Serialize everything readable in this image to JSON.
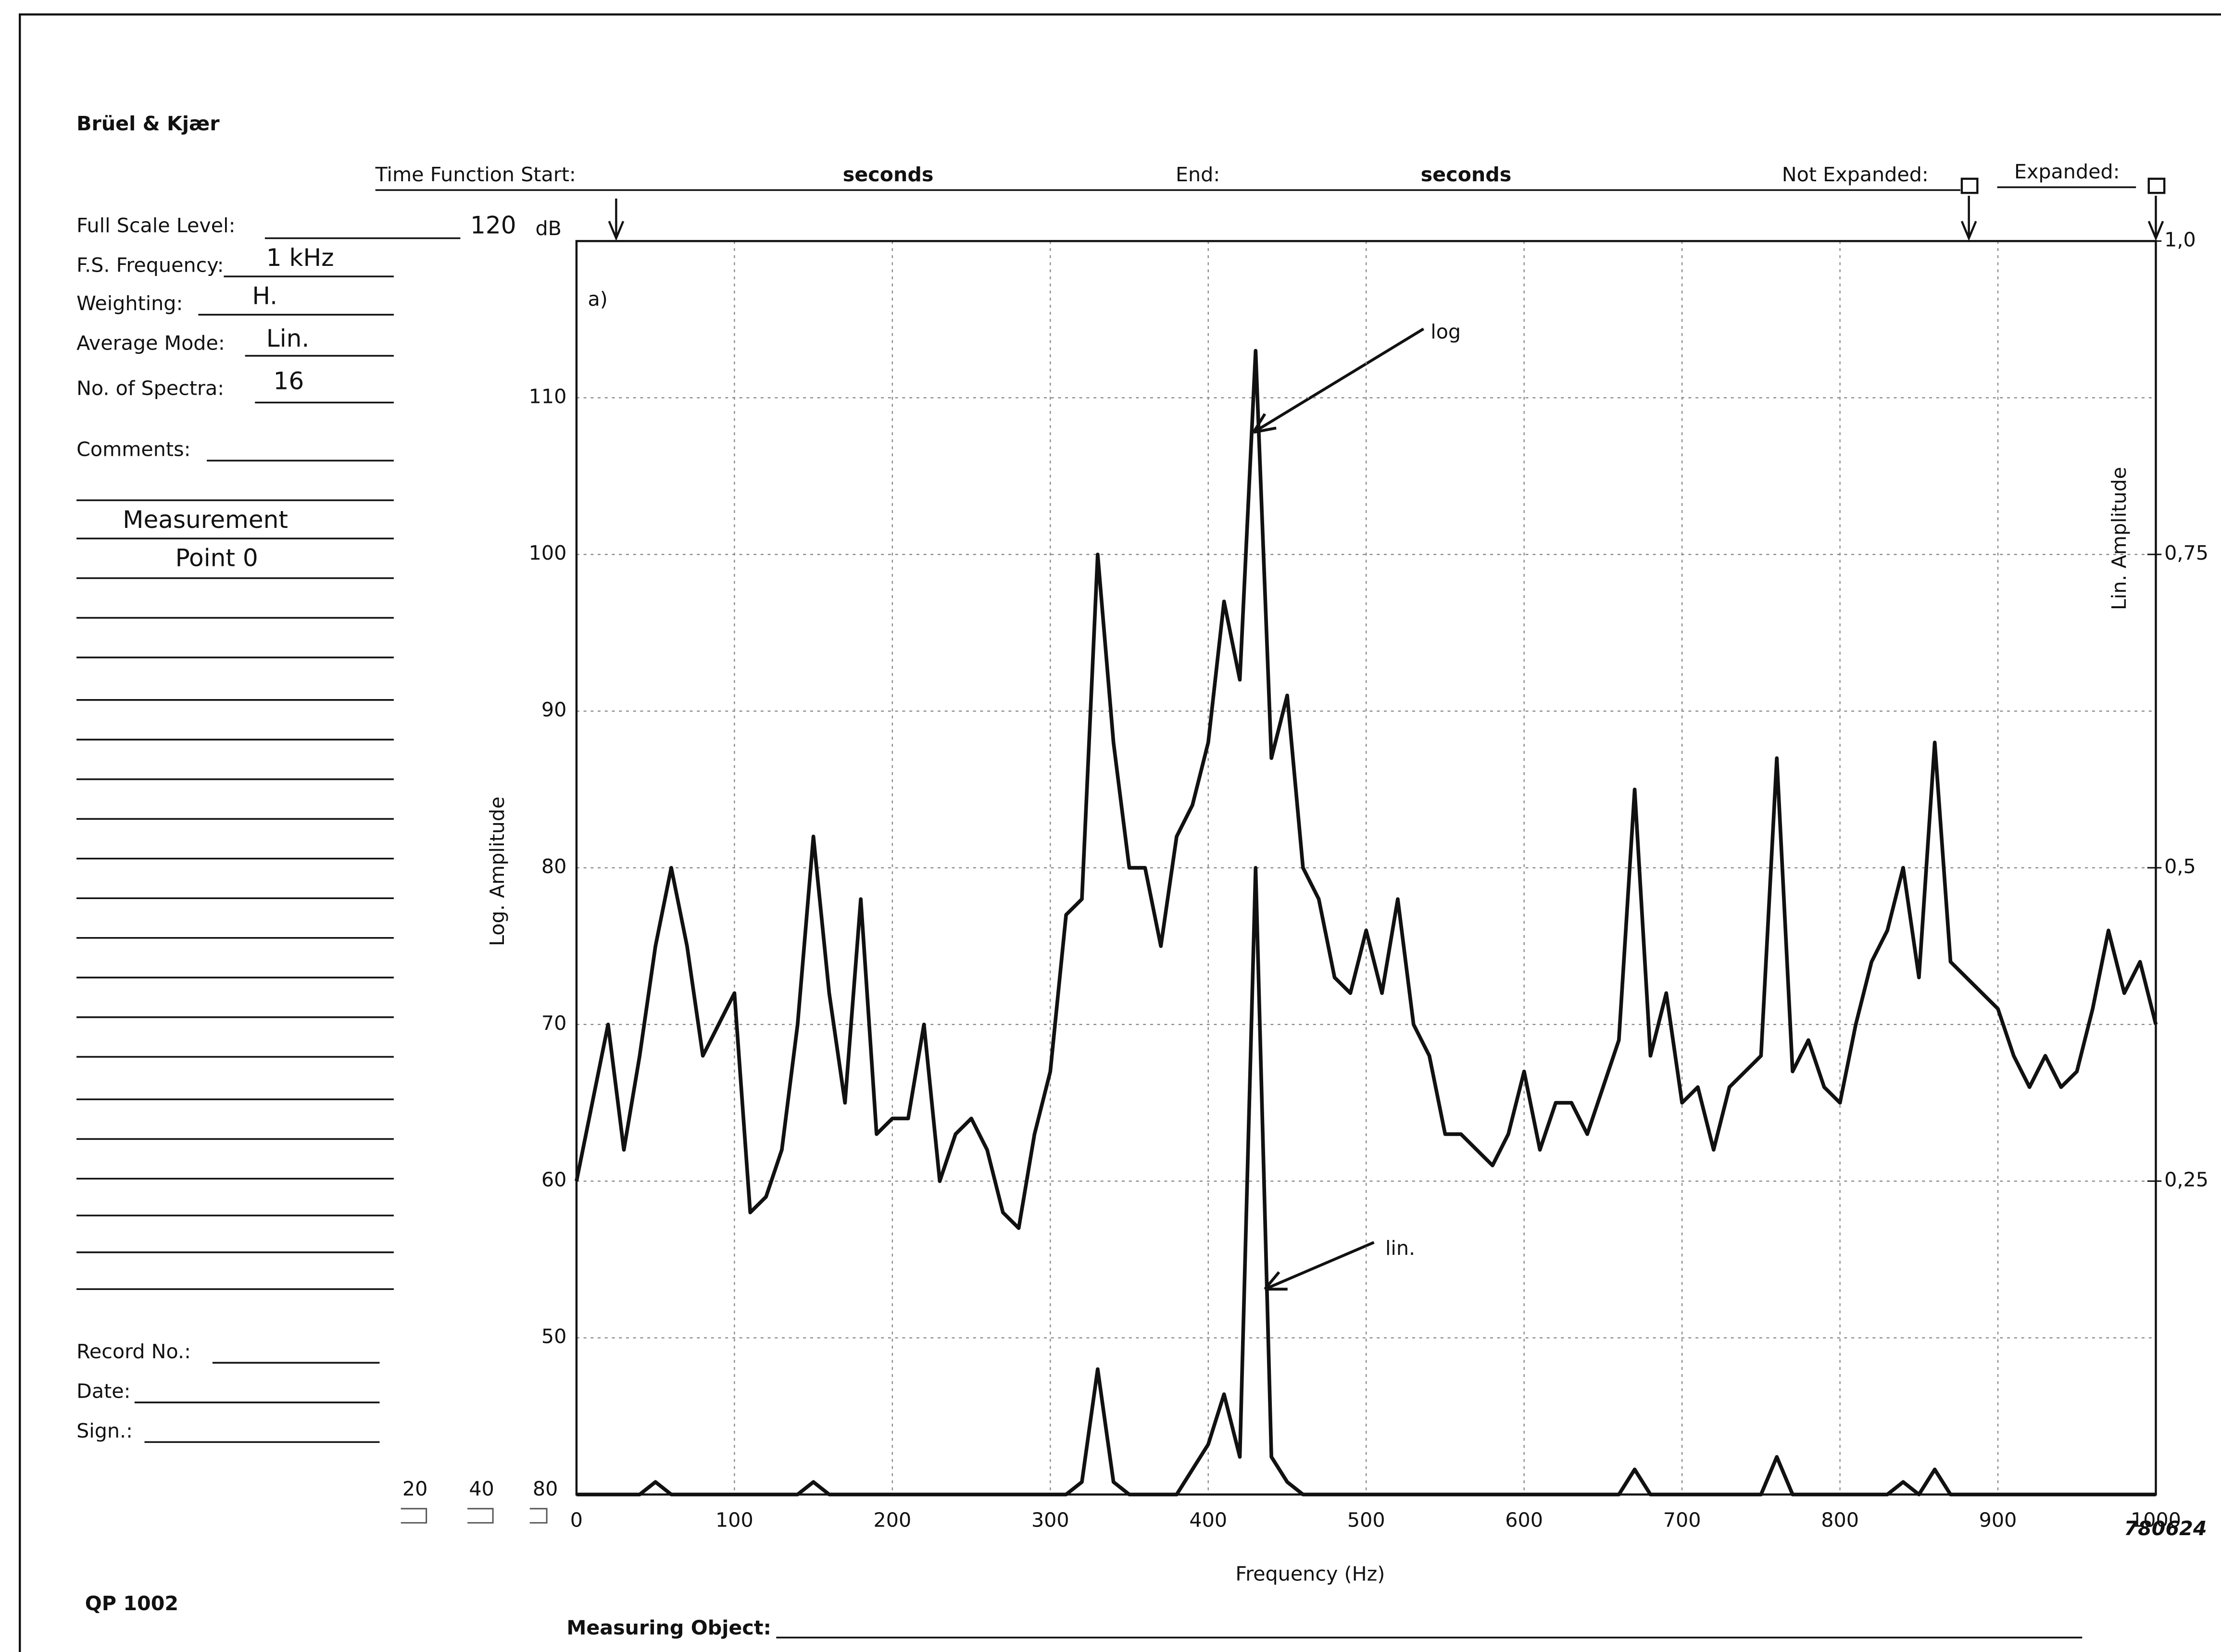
{
  "form": {
    "brand": "Brüel & Kjær",
    "time_function_start": "Time Function Start:",
    "seconds_1": "seconds",
    "end": "End:",
    "seconds_2": "seconds",
    "not_expanded": "Not Expanded:",
    "expanded": "Expanded:",
    "full_scale_level": "Full Scale Level:",
    "full_scale_value": "120",
    "full_scale_unit": "dB",
    "fs_frequency": "F.S. Frequency:",
    "fs_frequency_value": "1 kHz",
    "weighting": "Weighting:",
    "weighting_value": "H.",
    "average_mode": "Average Mode:",
    "average_mode_value": "Lin.",
    "no_of_spectra": "No. of Spectra:",
    "no_of_spectra_value": "16",
    "comments": "Comments:",
    "comments_lines": [
      "Measurement",
      "Point 0"
    ],
    "record_no": "Record No.:",
    "date": "Date:",
    "sign": "Sign.:",
    "form_number": "QP 1002",
    "measuring_object": "Measuring Object:",
    "scale_options": [
      "20",
      "40",
      "80"
    ]
  },
  "chart_data": {
    "type": "line",
    "panel_label": "a)",
    "figure_number": "780624",
    "x_label": "Frequency (Hz)",
    "y_label": "Log. Amplitude",
    "y2_label": "Lin. Amplitude",
    "annotations": [
      {
        "text": "log"
      },
      {
        "text": "lin."
      }
    ],
    "x": [
      0,
      10,
      20,
      30,
      40,
      50,
      60,
      70,
      80,
      90,
      100,
      110,
      120,
      130,
      140,
      150,
      160,
      170,
      180,
      190,
      200,
      210,
      220,
      230,
      240,
      250,
      260,
      270,
      280,
      290,
      300,
      310,
      320,
      330,
      340,
      350,
      360,
      370,
      380,
      390,
      400,
      410,
      420,
      430,
      440,
      450,
      460,
      470,
      480,
      490,
      500,
      510,
      520,
      530,
      540,
      550,
      560,
      570,
      580,
      590,
      600,
      610,
      620,
      630,
      640,
      650,
      660,
      670,
      680,
      690,
      700,
      710,
      720,
      730,
      740,
      750,
      760,
      770,
      780,
      790,
      800,
      810,
      820,
      830,
      840,
      850,
      860,
      870,
      880,
      890,
      900,
      910,
      920,
      930,
      940,
      950,
      960,
      970,
      980,
      990,
      1000
    ],
    "series": [
      {
        "name": "log",
        "color": "#111111",
        "values": [
          60,
          65,
          70,
          62,
          68,
          75,
          80,
          75,
          68,
          70,
          72,
          58,
          59,
          62,
          70,
          82,
          72,
          65,
          78,
          63,
          64,
          64,
          70,
          60,
          63,
          64,
          62,
          58,
          57,
          63,
          67,
          77,
          78,
          100,
          88,
          80,
          80,
          75,
          82,
          84,
          88,
          97,
          92,
          113,
          87,
          91,
          80,
          78,
          73,
          72,
          76,
          72,
          78,
          70,
          68,
          63,
          63,
          62,
          61,
          63,
          67,
          62,
          65,
          65,
          63,
          66,
          69,
          85,
          68,
          72,
          65,
          66,
          62,
          66,
          67,
          68,
          87,
          67,
          69,
          66,
          65,
          70,
          74,
          76,
          80,
          73,
          88,
          74,
          73,
          72,
          71,
          68,
          66,
          68,
          66,
          67,
          71,
          76,
          72,
          74,
          70
        ]
      },
      {
        "name": "lin.",
        "color": "#111111",
        "axis": "y2",
        "values": [
          0,
          0,
          0,
          0,
          0,
          0.01,
          0,
          0,
          0,
          0,
          0,
          0,
          0,
          0,
          0,
          0.01,
          0,
          0,
          0,
          0,
          0,
          0,
          0,
          0,
          0,
          0,
          0,
          0,
          0,
          0,
          0,
          0,
          0.01,
          0.1,
          0.01,
          0,
          0,
          0,
          0,
          0.02,
          0.04,
          0.08,
          0.03,
          0.5,
          0.03,
          0.01,
          0,
          0,
          0,
          0,
          0,
          0,
          0,
          0,
          0,
          0,
          0,
          0,
          0,
          0,
          0,
          0,
          0,
          0,
          0,
          0,
          0,
          0.02,
          0,
          0,
          0,
          0,
          0,
          0,
          0,
          0,
          0.03,
          0,
          0,
          0,
          0,
          0,
          0,
          0,
          0.01,
          0,
          0.02,
          0,
          0,
          0,
          0,
          0,
          0,
          0,
          0,
          0,
          0,
          0,
          0,
          0,
          0
        ]
      }
    ],
    "xlim": [
      0,
      1000
    ],
    "xticks": [
      0,
      100,
      200,
      300,
      400,
      500,
      600,
      700,
      800,
      900,
      1000
    ],
    "ylim": [
      40,
      120
    ],
    "yticks": [
      50,
      60,
      70,
      80,
      90,
      100,
      110
    ],
    "y2lim": [
      0,
      1
    ],
    "y2ticks": [
      {
        "value": 0.25,
        "label": "0,25"
      },
      {
        "value": 0.5,
        "label": "0,5"
      },
      {
        "value": 0.75,
        "label": "0,75"
      },
      {
        "value": 1,
        "label": "1,0"
      }
    ],
    "grid": true
  }
}
